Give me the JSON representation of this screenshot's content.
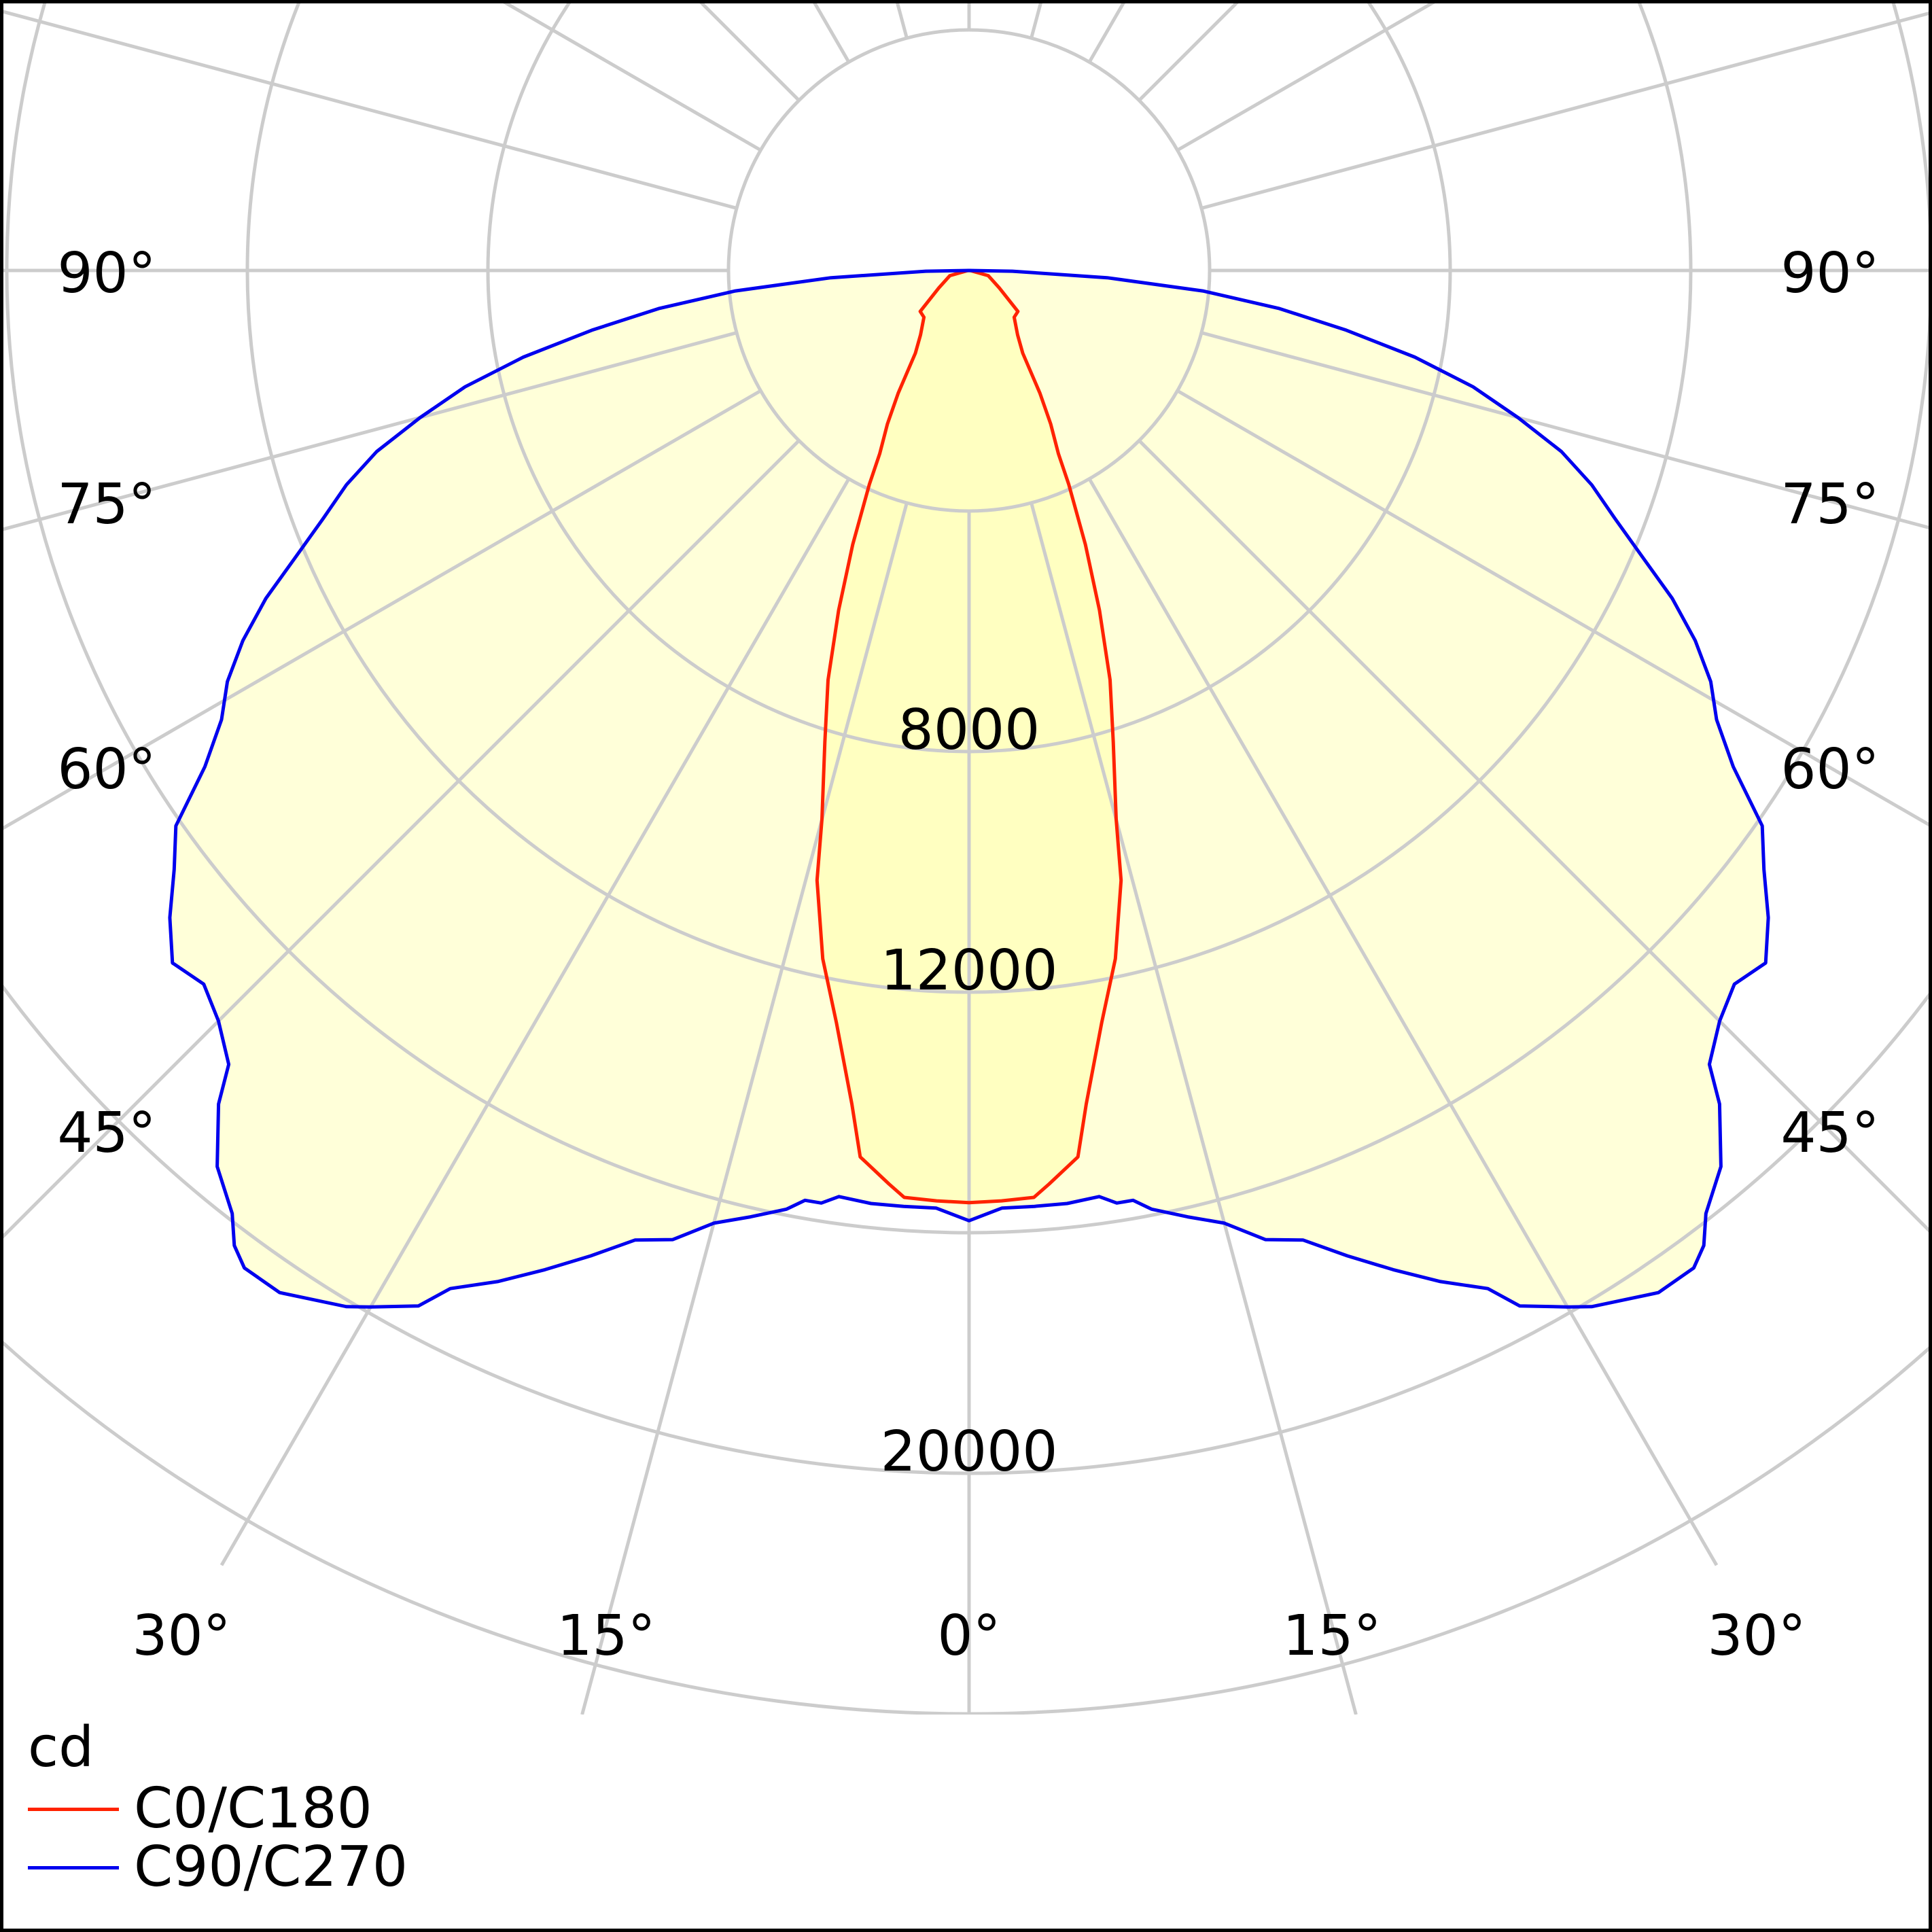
{
  "chart_data": {
    "type": "polar-light-distribution",
    "unit": "cd",
    "radial_ticks": [
      {
        "value": 4000,
        "label": ""
      },
      {
        "value": 8000,
        "label": "8000"
      },
      {
        "value": 12000,
        "label": "12000"
      },
      {
        "value": 16000,
        "label": ""
      },
      {
        "value": 20000,
        "label": "20000"
      },
      {
        "value": 24000,
        "label": ""
      }
    ],
    "angle_labels": {
      "bottom": [
        "30°",
        "15°",
        "0°",
        "15°",
        "30°"
      ],
      "left": [
        "90°",
        "75°",
        "60°",
        "45°"
      ],
      "right": [
        "90°",
        "75°",
        "60°",
        "45°"
      ]
    },
    "grid": true,
    "legend_position": "bottom-left",
    "colors": {
      "C0/C180": "#ff2200",
      "C90/C270": "#0000ee",
      "fill": "#ffffcc",
      "grid": "#cccccc"
    },
    "series": [
      {
        "name": "C0/C180",
        "color": "#ff2200",
        "angles_deg": [
          0,
          2,
          4,
          5,
          7,
          8,
          10,
          12,
          14,
          15,
          17,
          19,
          21,
          23,
          25,
          26,
          28,
          30,
          33,
          37,
          44,
          50,
          60,
          75,
          88
        ],
        "left_cd": [
          15500,
          15480,
          15450,
          15250,
          14850,
          14000,
          12700,
          11700,
          10450,
          9450,
          8200,
          7200,
          6050,
          4950,
          3920,
          3390,
          2890,
          2360,
          1640,
          1340,
          1080,
          1060,
          580,
          330,
          20
        ],
        "right_cd": [
          15500,
          15480,
          15450,
          15250,
          14850,
          14000,
          12700,
          11700,
          10450,
          9450,
          8200,
          7200,
          6050,
          4950,
          3920,
          3390,
          2890,
          2360,
          1640,
          1340,
          1080,
          1060,
          580,
          330,
          20
        ]
      },
      {
        "name": "C90/C270",
        "color": "#0000ee",
        "angles_deg": [
          0,
          2,
          4,
          6,
          8,
          9,
          10,
          11,
          13,
          15,
          17,
          19,
          21,
          23,
          25,
          27,
          28,
          30,
          31,
          34,
          36,
          37,
          38,
          40,
          42,
          43,
          45,
          47,
          49,
          51,
          53,
          55,
          57,
          59,
          61,
          63,
          65,
          67,
          69,
          71,
          73,
          75,
          77,
          79,
          81,
          83,
          85,
          87,
          89,
          90
        ],
        "left_cd": [
          15800,
          15600,
          15600,
          15600,
          15550,
          15700,
          15700,
          15900,
          16150,
          16400,
          16850,
          17050,
          17550,
          18050,
          18550,
          19000,
          19500,
          19900,
          20100,
          20500,
          20500,
          20300,
          19900,
          19450,
          18650,
          18050,
          17650,
          17400,
          17550,
          17100,
          16550,
          16100,
          15150,
          14500,
          14100,
          13550,
          12900,
          12150,
          11500,
          10950,
          10300,
          9450,
          8600,
          7550,
          6350,
          5200,
          3900,
          2300,
          720,
          0
        ],
        "right_cd": [
          15800,
          15600,
          15600,
          15600,
          15550,
          15700,
          15700,
          15900,
          16150,
          16400,
          16850,
          17050,
          17550,
          18050,
          18550,
          19000,
          19500,
          19900,
          20100,
          20500,
          20500,
          20300,
          19900,
          19450,
          18650,
          18050,
          17650,
          17400,
          17550,
          17100,
          16550,
          16100,
          15150,
          14500,
          14100,
          13550,
          12900,
          12150,
          11500,
          10950,
          10300,
          9450,
          8600,
          7550,
          6350,
          5200,
          3900,
          2300,
          720,
          0
        ]
      }
    ]
  },
  "legend": {
    "unit_label": "cd",
    "items": [
      {
        "label": "C0/C180",
        "color": "#ff2200"
      },
      {
        "label": "C90/C270",
        "color": "#0000ee"
      }
    ]
  }
}
